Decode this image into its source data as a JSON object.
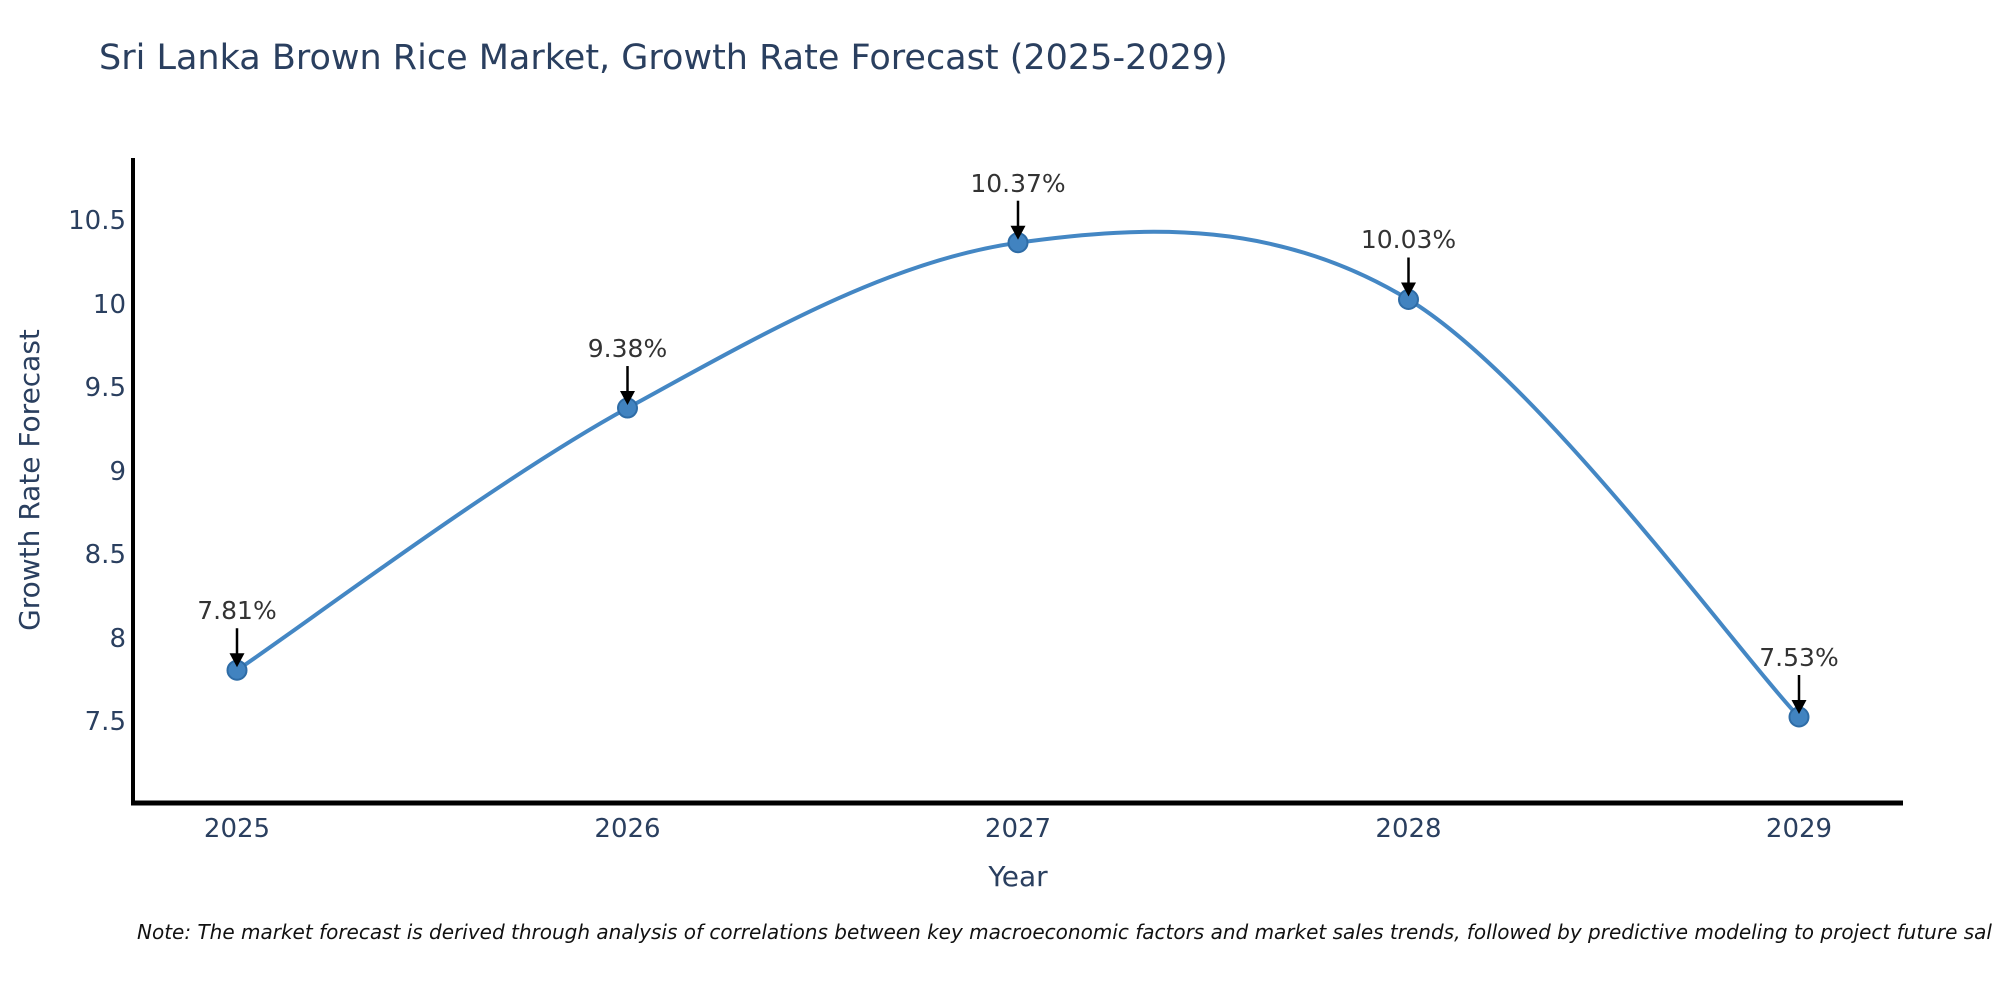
{
  "title": "Sri Lanka Brown Rice Market, Growth Rate Forecast (2025-2029)",
  "note": "Note: The market forecast is derived through analysis of correlations between key macroeconomic factors and market sales trends, followed by predictive modeling to project future sal",
  "chart_data": {
    "type": "line",
    "x": [
      "2025",
      "2026",
      "2027",
      "2028",
      "2029"
    ],
    "series": [
      {
        "name": "Growth Rate Forecast",
        "values": [
          7.81,
          9.38,
          10.37,
          10.03,
          7.53
        ],
        "point_labels": [
          "7.81%",
          "9.38%",
          "10.37%",
          "10.03%",
          "7.53%"
        ]
      }
    ],
    "xlabel": "Year",
    "ylabel": "Growth Rate Forecast",
    "yticks": [
      10.5,
      10,
      9.5,
      9,
      8.5,
      8,
      7.5
    ],
    "ylim": [
      7.03,
      10.87
    ],
    "grid": false,
    "legend_position": "none",
    "line_shape": "smooth-spline",
    "colors": {
      "line": "#4487c4",
      "marker_fill": "#4183c0",
      "marker_edge": "#2e6ca6",
      "axis_line": "#000000",
      "annotation_arrow": "#000000",
      "annotation_text": "#333333",
      "axis_text": "#2a3f5f"
    }
  }
}
